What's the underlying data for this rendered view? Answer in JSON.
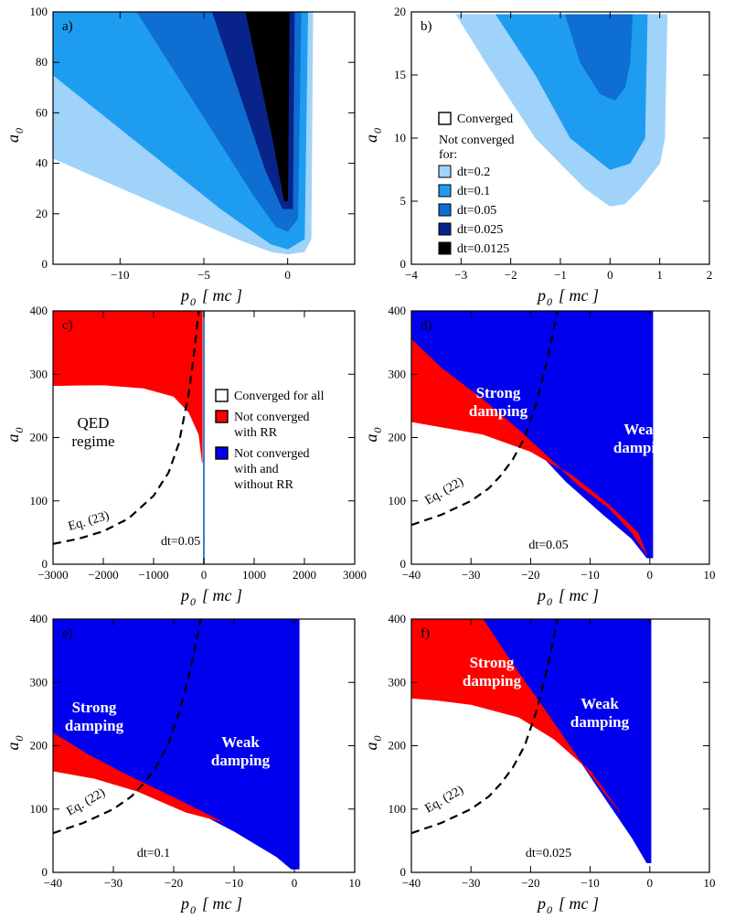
{
  "colors": {
    "dt_0_2": "#9fd3fa",
    "dt_0_1": "#1e9df0",
    "dt_0_05": "#0f6ed2",
    "dt_0_025": "#08248a",
    "dt_0_0125": "#000000",
    "rr_red": "#ff0000",
    "rr_blue": "#0000ee",
    "eq_line": "#000000"
  },
  "chart_data": [
    {
      "panel": "a)",
      "type": "heatmap",
      "xlabel": "p",
      "xlabel_sub": "0",
      "xlabel_units": "mc",
      "ylabel": "a",
      "ylabel_sub": "0",
      "xlim": [
        -14,
        4
      ],
      "ylim": [
        0,
        100
      ],
      "xticks": [
        -10,
        -5,
        0
      ],
      "yticks": [
        0,
        20,
        40,
        60,
        80,
        100
      ],
      "regions": [
        {
          "name": "dt=0.2",
          "color_key": "dt_0_2",
          "points": [
            [
              -14,
              75
            ],
            [
              -14,
              42
            ],
            [
              -3,
              10
            ],
            [
              -1,
              5
            ],
            [
              0,
              4
            ],
            [
              1,
              5
            ],
            [
              1.4,
              10
            ],
            [
              1.5,
              100
            ],
            [
              -3,
              100
            ]
          ]
        },
        {
          "name": "dt=0.1",
          "color_key": "dt_0_1",
          "points": [
            [
              -14,
              100
            ],
            [
              -14,
              75
            ],
            [
              -4,
              22
            ],
            [
              -1,
              8
            ],
            [
              0,
              6
            ],
            [
              1,
              10
            ],
            [
              1.2,
              100
            ]
          ]
        },
        {
          "name": "dt=0.05",
          "color_key": "dt_0_05",
          "points": [
            [
              -9,
              100
            ],
            [
              -2,
              27
            ],
            [
              -0.7,
              15
            ],
            [
              0,
              13
            ],
            [
              0.6,
              18
            ],
            [
              0.8,
              100
            ]
          ]
        },
        {
          "name": "dt=0.025",
          "color_key": "dt_0_025",
          "points": [
            [
              -4.5,
              100
            ],
            [
              -1.3,
              37
            ],
            [
              -0.3,
              22
            ],
            [
              0.3,
              22
            ],
            [
              0.4,
              100
            ]
          ]
        },
        {
          "name": "dt=0.0125",
          "color_key": "dt_0_0125",
          "points": [
            [
              -2.5,
              100
            ],
            [
              -0.9,
              50
            ],
            [
              -0.2,
              25
            ],
            [
              0,
              25
            ],
            [
              0.1,
              100
            ]
          ]
        }
      ]
    },
    {
      "panel": "b)",
      "type": "heatmap",
      "xlabel": "p",
      "xlabel_sub": "0",
      "xlabel_units": "mc",
      "ylabel": "a",
      "ylabel_sub": "0",
      "xlim": [
        -4,
        2
      ],
      "ylim": [
        0,
        20
      ],
      "xticks": [
        -4,
        -3,
        -2,
        -1,
        0,
        1,
        2
      ],
      "yticks": [
        0,
        5,
        10,
        15,
        20
      ],
      "legend": {
        "placement": "center-left",
        "title_items": [
          "Converged"
        ],
        "subtitle": [
          "Not converged",
          "for:"
        ],
        "items": [
          {
            "label": "dt=0.2",
            "color_key": "dt_0_2"
          },
          {
            "label": "dt=0.1",
            "color_key": "dt_0_1"
          },
          {
            "label": "dt=0.05",
            "color_key": "dt_0_05"
          },
          {
            "label": "dt=0.025",
            "color_key": "dt_0_025"
          },
          {
            "label": "dt=0.0125",
            "color_key": "dt_0_0125"
          }
        ]
      },
      "regions": [
        {
          "name": "dt=0.2",
          "color_key": "dt_0_2",
          "points": [
            [
              -3.1,
              19.8
            ],
            [
              -2.5,
              16
            ],
            [
              -1.5,
              10
            ],
            [
              -0.5,
              6
            ],
            [
              0,
              4.6
            ],
            [
              0.3,
              4.8
            ],
            [
              0.6,
              6
            ],
            [
              1,
              8
            ],
            [
              1.1,
              10
            ],
            [
              1.15,
              19.8
            ]
          ]
        },
        {
          "name": "dt=0.1",
          "color_key": "dt_0_1",
          "points": [
            [
              -2.3,
              19.8
            ],
            [
              -1.5,
              15
            ],
            [
              -0.8,
              10
            ],
            [
              0,
              7.5
            ],
            [
              0.4,
              8
            ],
            [
              0.7,
              10
            ],
            [
              0.75,
              19.8
            ]
          ]
        },
        {
          "name": "dt=0.05",
          "color_key": "dt_0_05",
          "points": [
            [
              -0.9,
              19.8
            ],
            [
              -0.6,
              16
            ],
            [
              -0.2,
              13.5
            ],
            [
              0.1,
              13
            ],
            [
              0.3,
              14
            ],
            [
              0.4,
              16
            ],
            [
              0.45,
              19.8
            ]
          ]
        }
      ]
    },
    {
      "panel": "c)",
      "type": "heatmap",
      "xlabel": "p",
      "xlabel_sub": "0",
      "xlabel_units": "mc",
      "ylabel": "a",
      "ylabel_sub": "0",
      "xlim": [
        -3000,
        3000
      ],
      "ylim": [
        0,
        400
      ],
      "xticks": [
        -3000,
        -2000,
        -1000,
        0,
        1000,
        2000,
        3000
      ],
      "yticks": [
        0,
        100,
        200,
        300,
        400
      ],
      "annotations": [
        "QED",
        "regime",
        "Eq. (23)",
        "dt=0.05"
      ],
      "legend": {
        "placement": "center-right",
        "items": [
          {
            "label": [
              "Converged for all"
            ],
            "color_key": "none"
          },
          {
            "label": [
              "Not converged",
              "with RR"
            ],
            "color_key": "rr_red"
          },
          {
            "label": [
              "Not converged",
              "with and",
              "without RR"
            ],
            "color_key": "rr_blue"
          }
        ]
      },
      "curve": {
        "label": "Eq. (23)",
        "x": [
          -3000,
          -2500,
          -2000,
          -1500,
          -1000,
          -700,
          -500,
          -300,
          -200,
          -100
        ],
        "y": [
          32,
          40,
          52,
          72,
          108,
          145,
          190,
          270,
          330,
          400
        ]
      },
      "regions": [
        {
          "name": "not converged with RR",
          "color_key": "rr_red",
          "points": [
            [
              -3000,
              400
            ],
            [
              -3000,
              282
            ],
            [
              -2000,
              283
            ],
            [
              -1200,
              278
            ],
            [
              -600,
              265
            ],
            [
              -300,
              240
            ],
            [
              -100,
              205
            ],
            [
              -30,
              160
            ],
            [
              -30,
              400
            ]
          ]
        }
      ]
    },
    {
      "panel": "d)",
      "type": "heatmap",
      "xlabel": "p",
      "xlabel_sub": "0",
      "xlabel_units": "mc",
      "ylabel": "a",
      "ylabel_sub": "0",
      "xlim": [
        -40,
        10
      ],
      "ylim": [
        0,
        400
      ],
      "xticks": [
        -40,
        -30,
        -20,
        -10,
        0,
        10
      ],
      "yticks": [
        0,
        100,
        200,
        300,
        400
      ],
      "annotations": [
        "Strong",
        "damping",
        "Weak",
        "damping",
        "Eq. (22)",
        "dt=0.05"
      ],
      "curve": {
        "label": "Eq. (22)",
        "x": [
          -40,
          -35,
          -30,
          -27,
          -25,
          -23,
          -21,
          -19,
          -17,
          -15.5
        ],
        "y": [
          62,
          78,
          100,
          120,
          140,
          165,
          200,
          255,
          330,
          400
        ]
      },
      "regions": [
        {
          "name": "not converged with and without RR",
          "color_key": "rr_blue",
          "points": [
            [
              -40,
              400
            ],
            [
              -40,
              350
            ],
            [
              -35,
              305
            ],
            [
              -22,
              210
            ],
            [
              -14,
              130
            ],
            [
              -8,
              80
            ],
            [
              -3,
              40
            ],
            [
              -0.5,
              10
            ],
            [
              0.5,
              10
            ],
            [
              0.5,
              400
            ]
          ]
        },
        {
          "name": "not converged with RR",
          "color_key": "rr_red",
          "points": [
            [
              -40,
              355
            ],
            [
              -35,
              310
            ],
            [
              -28,
              260
            ],
            [
              -22,
              212
            ],
            [
              -16,
              160
            ],
            [
              -12,
              125
            ],
            [
              -7,
              90
            ],
            [
              -3,
              50
            ],
            [
              -0.5,
              15
            ],
            [
              -2,
              50
            ],
            [
              -7,
              95
            ],
            [
              -13,
              140
            ],
            [
              -20,
              178
            ],
            [
              -28,
              205
            ],
            [
              -34,
              215
            ],
            [
              -40,
              225
            ]
          ]
        }
      ]
    },
    {
      "panel": "e)",
      "type": "heatmap",
      "xlabel": "p",
      "xlabel_sub": "0",
      "xlabel_units": "mc",
      "ylabel": "a",
      "ylabel_sub": "0",
      "xlim": [
        -40,
        10
      ],
      "ylim": [
        0,
        400
      ],
      "xticks": [
        -40,
        -30,
        -20,
        -10,
        0,
        10
      ],
      "yticks": [
        0,
        100,
        200,
        300,
        400
      ],
      "annotations": [
        "Strong",
        "damping",
        "Weak",
        "damping",
        "Eq. (22)",
        "dt=0.1"
      ],
      "curve": {
        "label": "Eq. (22)",
        "x": [
          -40,
          -35,
          -30,
          -27,
          -25,
          -23,
          -21,
          -19,
          -17,
          -15.5
        ],
        "y": [
          62,
          78,
          100,
          120,
          140,
          165,
          200,
          255,
          330,
          400
        ]
      },
      "regions": [
        {
          "name": "not converged with and without RR",
          "color_key": "rr_blue",
          "points": [
            [
              -40,
              400
            ],
            [
              -40,
              215
            ],
            [
              -30,
              160
            ],
            [
              -20,
              115
            ],
            [
              -10,
              65
            ],
            [
              -3,
              25
            ],
            [
              -0.5,
              5
            ],
            [
              0.8,
              5
            ],
            [
              0.8,
              400
            ]
          ]
        },
        {
          "name": "not converged with RR",
          "color_key": "rr_red",
          "points": [
            [
              -40,
              220
            ],
            [
              -34,
              185
            ],
            [
              -28,
              155
            ],
            [
              -20,
              118
            ],
            [
              -12,
              80
            ],
            [
              -18,
              95
            ],
            [
              -26,
              128
            ],
            [
              -33,
              148
            ],
            [
              -40,
              160
            ]
          ]
        }
      ]
    },
    {
      "panel": "f)",
      "type": "heatmap",
      "xlabel": "p",
      "xlabel_sub": "0",
      "xlabel_units": "mc",
      "ylabel": "a",
      "ylabel_sub": "0",
      "xlim": [
        -40,
        10
      ],
      "ylim": [
        0,
        400
      ],
      "xticks": [
        -40,
        -30,
        -20,
        -10,
        0,
        10
      ],
      "yticks": [
        0,
        100,
        200,
        300,
        400
      ],
      "annotations": [
        "Strong",
        "damping",
        "Weak",
        "damping",
        "Eq. (22)",
        "dt=0.025"
      ],
      "curve": {
        "label": "Eq. (22)",
        "x": [
          -40,
          -35,
          -30,
          -27,
          -25,
          -23,
          -21,
          -19,
          -17,
          -15.5
        ],
        "y": [
          62,
          78,
          100,
          120,
          140,
          165,
          200,
          255,
          330,
          400
        ]
      },
      "regions": [
        {
          "name": "not converged with and without RR",
          "color_key": "rr_blue",
          "points": [
            [
              -28,
              400
            ],
            [
              -22,
              315
            ],
            [
              -18,
              260
            ],
            [
              -12,
              180
            ],
            [
              -7,
              110
            ],
            [
              -3,
              55
            ],
            [
              -0.5,
              15
            ],
            [
              0.2,
              15
            ],
            [
              0.2,
              400
            ]
          ]
        },
        {
          "name": "not converged with RR",
          "color_key": "rr_red",
          "points": [
            [
              -40,
              400
            ],
            [
              -28,
              400
            ],
            [
              -22,
              315
            ],
            [
              -18,
              262
            ],
            [
              -12,
              180
            ],
            [
              -8,
              130
            ],
            [
              -5,
              95
            ],
            [
              -10,
              160
            ],
            [
              -16,
              210
            ],
            [
              -22,
              245
            ],
            [
              -30,
              265
            ],
            [
              -36,
              272
            ],
            [
              -40,
              275
            ]
          ]
        }
      ]
    }
  ]
}
